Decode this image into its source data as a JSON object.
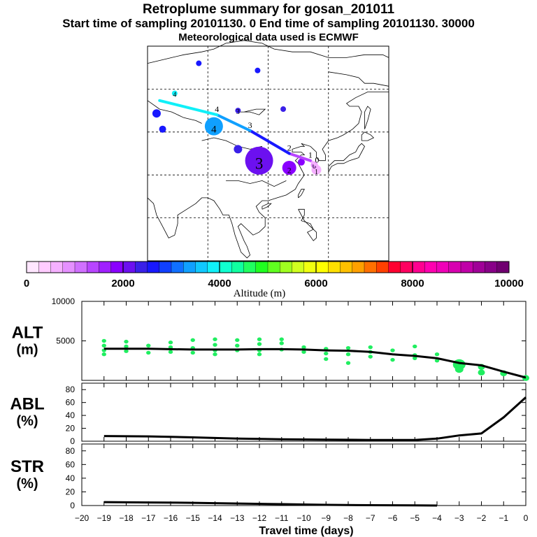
{
  "header": {
    "title": "Retroplume summary for gosan_201011",
    "sampling_line": "Start time of sampling 20101130.    0     End time of sampling 20101130. 30000",
    "met_line": "Meteorological data used is ECMWF"
  },
  "colorbar": {
    "label": "Altitude (m)",
    "range": [
      0,
      10000
    ],
    "tick_labels": [
      "0",
      "2000",
      "4000",
      "6000",
      "8000",
      "10000"
    ],
    "colors": [
      "#ffe6ff",
      "#ffccff",
      "#f5b0ff",
      "#e590ff",
      "#d070ff",
      "#b845ff",
      "#a020ff",
      "#8a00ff",
      "#6c10f0",
      "#3a20e8",
      "#1818ff",
      "#1040ff",
      "#1070ff",
      "#10a0ff",
      "#10c8ff",
      "#10f0f8",
      "#10ffd0",
      "#10ffa0",
      "#20ff60",
      "#20ff20",
      "#60ff20",
      "#a0ff20",
      "#d0ff20",
      "#f0ff10",
      "#ffff00",
      "#ffe000",
      "#ffc000",
      "#ffa000",
      "#ff7000",
      "#ff4000",
      "#ff0030",
      "#ff0060",
      "#ff0090",
      "#ff00b0",
      "#f000b8",
      "#d800b0",
      "#c000a8",
      "#a00098",
      "#880088",
      "#700070"
    ]
  },
  "map": {
    "trajectory": [
      {
        "label": "0",
        "lon": 126.2,
        "lat": 33.3,
        "alt": 300
      },
      {
        "label": "1",
        "lon": 124.0,
        "lat": 35.0,
        "alt": 1000
      },
      {
        "label": "2",
        "lon": 117.0,
        "lat": 37.5,
        "alt": 1800
      },
      {
        "label": "3",
        "lon": 104.0,
        "lat": 45.5,
        "alt": 3200
      },
      {
        "label": "4",
        "lon": 93.0,
        "lat": 51.0,
        "alt": 3700
      },
      {
        "label": "",
        "lon": 74.0,
        "lat": 56.0,
        "alt": 3900
      }
    ],
    "plume_points": [
      {
        "label": "1",
        "lon": 126.0,
        "lat": 31.8,
        "alt": 600,
        "size": 7
      },
      {
        "label": "0",
        "lon": 125.3,
        "lat": 33.5,
        "alt": 800,
        "size": 5
      },
      {
        "label": "",
        "lon": 121.0,
        "lat": 34.5,
        "alt": 1800,
        "size": 5
      },
      {
        "label": "2",
        "lon": 117.0,
        "lat": 32.5,
        "alt": 1800,
        "size": 10
      },
      {
        "label": "3",
        "lon": 107.0,
        "lat": 35.0,
        "alt": 2000,
        "size": 20
      },
      {
        "label": "",
        "lon": 109.0,
        "lat": 37.8,
        "alt": 2200,
        "size": 4
      },
      {
        "label": "",
        "lon": 100.0,
        "lat": 39.0,
        "alt": 2300,
        "size": 6
      },
      {
        "label": "4",
        "lon": 92.0,
        "lat": 47.0,
        "alt": 3300,
        "size": 13
      },
      {
        "label": "3",
        "lon": 100.0,
        "lat": 52.5,
        "alt": 2300,
        "size": 4
      },
      {
        "label": "",
        "lon": 115.0,
        "lat": 53.0,
        "alt": 2300,
        "size": 4
      },
      {
        "label": "",
        "lon": 75.0,
        "lat": 46.0,
        "alt": 2500,
        "size": 5
      },
      {
        "label": "",
        "lon": 73.0,
        "lat": 51.5,
        "alt": 2500,
        "size": 6
      },
      {
        "label": "4",
        "lon": 79.0,
        "lat": 58.5,
        "alt": 3900,
        "size": 4
      },
      {
        "label": "",
        "lon": 87.0,
        "lat": 69.0,
        "alt": 2500,
        "size": 4
      },
      {
        "label": "",
        "lon": 106.5,
        "lat": 66.5,
        "alt": 2500,
        "size": 4
      }
    ]
  },
  "chart_data": [
    {
      "type": "scatter",
      "panel_label": "ALT\n(m)",
      "ylabel_lines": [
        "ALT",
        "(m)"
      ],
      "ylim": [
        0,
        10000
      ],
      "yticks": [
        5000,
        10000
      ],
      "ytick_labels": [
        "5000",
        "10000"
      ],
      "xlim": [
        -20,
        0
      ],
      "median_line": {
        "x": [
          -19,
          -18,
          -17,
          -16,
          -15,
          -14,
          -13,
          -12,
          -11,
          -10,
          -9,
          -8,
          -7,
          -6,
          -5,
          -4,
          -3,
          -2,
          -1,
          0
        ],
        "y": [
          4000,
          4000,
          4000,
          3950,
          3900,
          3900,
          3900,
          3950,
          3950,
          3900,
          3800,
          3750,
          3600,
          3300,
          3100,
          2800,
          2200,
          1900,
          1100,
          350
        ]
      },
      "plume_points": [
        {
          "x": -19,
          "y": [
            5000,
            4400,
            3800,
            3300
          ]
        },
        {
          "x": -18,
          "y": [
            4900,
            4300,
            3700
          ]
        },
        {
          "x": -17,
          "y": [
            4400,
            3500
          ]
        },
        {
          "x": -16,
          "y": [
            4800,
            4200,
            3600
          ]
        },
        {
          "x": -15,
          "y": [
            5100,
            4100,
            3500
          ]
        },
        {
          "x": -14,
          "y": [
            5200,
            4500,
            3800,
            3300
          ]
        },
        {
          "x": -13,
          "y": [
            5100,
            4400,
            3800
          ]
        },
        {
          "x": -12,
          "y": [
            5200,
            4600,
            3800,
            3300
          ]
        },
        {
          "x": -11,
          "y": [
            5200,
            4700,
            3900
          ]
        },
        {
          "x": -10,
          "y": [
            4200,
            3600
          ]
        },
        {
          "x": -9,
          "y": [
            4000,
            3400,
            2700
          ]
        },
        {
          "x": -8,
          "y": [
            4100,
            3300,
            2200
          ]
        },
        {
          "x": -7,
          "y": [
            4200,
            3600,
            3000
          ]
        },
        {
          "x": -6,
          "y": [
            3800,
            2600
          ]
        },
        {
          "x": -5,
          "y": [
            4300,
            3200,
            2800
          ]
        },
        {
          "x": -4,
          "y": [
            3300,
            2500
          ]
        },
        {
          "x": -3,
          "y": [
            2000,
            1400
          ]
        },
        {
          "x": -2,
          "y": [
            1700,
            1000
          ]
        },
        {
          "x": -1,
          "y": [
            900
          ]
        },
        {
          "x": 0,
          "y": [
            300
          ]
        }
      ]
    },
    {
      "type": "line",
      "panel_label": "ABL\n(%)",
      "ylabel_lines": [
        "ABL",
        "(%)"
      ],
      "ylim": [
        0,
        90
      ],
      "yticks": [
        0,
        20,
        40,
        60,
        80
      ],
      "ytick_labels": [
        "0",
        "20",
        "40",
        "60",
        "80"
      ],
      "xlim": [
        -20,
        0
      ],
      "x": [
        -19,
        -17,
        -15,
        -13,
        -11,
        -9,
        -7,
        -5,
        -4,
        -3,
        -2,
        -1,
        0
      ],
      "y": [
        8,
        7.5,
        6,
        4,
        3,
        2.5,
        2,
        2,
        4,
        9,
        12,
        37,
        68
      ]
    },
    {
      "type": "line",
      "panel_label": "STR\n(%)",
      "ylabel_lines": [
        "STR",
        "(%)"
      ],
      "ylim": [
        0,
        90
      ],
      "yticks": [
        0,
        20,
        40,
        60,
        80
      ],
      "ytick_labels": [
        "0",
        "20",
        "40",
        "60",
        "80"
      ],
      "xlim": [
        -20,
        0
      ],
      "x": [
        -19,
        -17,
        -15,
        -13,
        -11,
        -9,
        -7,
        -5,
        -4
      ],
      "y": [
        5,
        4.5,
        4,
        3,
        2,
        1,
        0.5,
        0.2,
        0
      ]
    }
  ],
  "xaxis": {
    "label": "Travel time (days)",
    "ticks": [
      -20,
      -19,
      -18,
      -17,
      -16,
      -15,
      -14,
      -13,
      -12,
      -11,
      -10,
      -9,
      -8,
      -7,
      -6,
      -5,
      -4,
      -3,
      -2,
      -1,
      0
    ],
    "tick_labels": [
      "−20",
      "−19",
      "−18",
      "−17",
      "−16",
      "−15",
      "−14",
      "−13",
      "−12",
      "−11",
      "−10",
      "−9",
      "−8",
      "−7",
      "−6",
      "−5",
      "−4",
      "−3",
      "−2",
      "−1",
      "0"
    ]
  }
}
